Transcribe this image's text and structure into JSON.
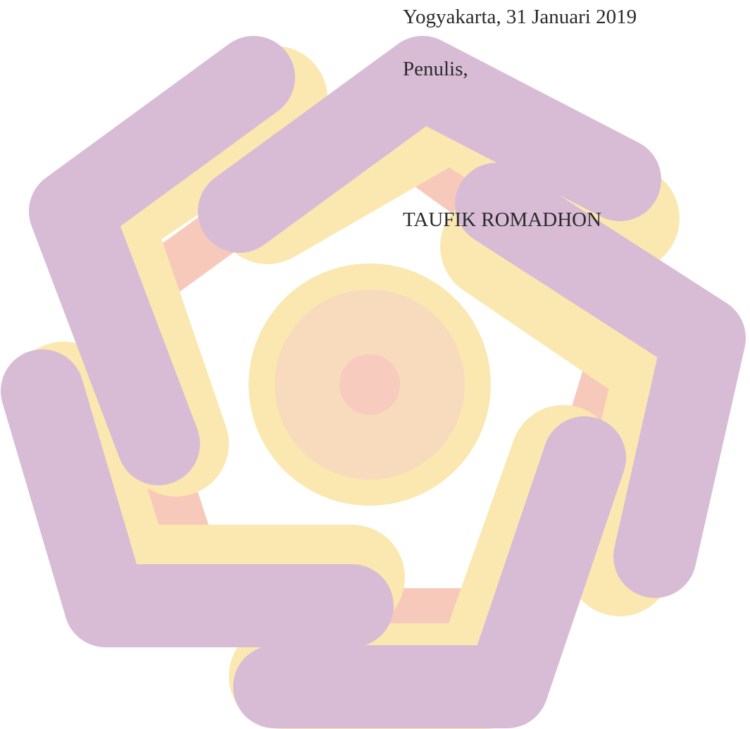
{
  "signature": {
    "place_date": "Yogyakarta, 31 Januari 2019",
    "role": "Penulis,",
    "name": "TAUFIK ROMADHON"
  }
}
